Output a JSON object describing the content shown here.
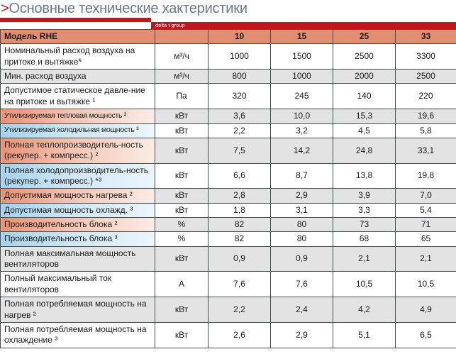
{
  "title": {
    "marker": ">",
    "text": "Основные технические хактеристики"
  },
  "brand": {
    "label": "delta t group"
  },
  "colors": {
    "accent_red": "#c3161c",
    "header_bg": "#e28e72",
    "zebra_gray": "#e3e3e4",
    "heat_gradient_start": "#e88f73",
    "heat_gradient_end": "#fbeee8",
    "cool_gradient_start": "#a2d1ed",
    "cool_gradient_end": "#ecf6fc",
    "border": "#4a4d52",
    "title_text": "#6a7a8a"
  },
  "table": {
    "model_header": "Модель RHE",
    "unit_header": "",
    "size_columns": [
      "10",
      "15",
      "25",
      "33"
    ],
    "rows": [
      {
        "label": "Номинальный расход воздуха на притоке и вытяжке*",
        "unit": "м³/ч",
        "values": [
          "1000",
          "1500",
          "2500",
          "3300"
        ],
        "accent": "none"
      },
      {
        "label": "Мин. расход воздуха",
        "unit": "м³/ч",
        "values": [
          "800",
          "1000",
          "2000",
          "2500"
        ],
        "accent": "none"
      },
      {
        "label": "Допустимое статическое давле-ние на притоке  и вытяжке ¹",
        "unit": "Па",
        "values": [
          "320",
          "245",
          "140",
          "220"
        ],
        "accent": "none"
      },
      {
        "label": "Утилизируемая тепловая мощность ²",
        "unit": "кВт",
        "values": [
          "3,6",
          "10,0",
          "15,3",
          "19,6"
        ],
        "accent": "heat"
      },
      {
        "label": "Утилизируемая холодильная мощность ³",
        "unit": "кВт",
        "values": [
          "2,2",
          "3,2",
          "4,5",
          "5,8"
        ],
        "accent": "cool"
      },
      {
        "label": "Полная теплопроизводитель-ность (рекупер. + компресс.)  ²",
        "unit": "кВт",
        "values": [
          "7,5",
          "14,2",
          "24,8",
          "33,1"
        ],
        "accent": "heat"
      },
      {
        "label": "Полная холодопроизводитель-ность (рекупер. + компресс.) *³",
        "unit": "кВт",
        "values": [
          "6,6",
          "8,7",
          "13,8",
          "19,8"
        ],
        "accent": "cool"
      },
      {
        "label": "Допустимая мощность нагрева ²",
        "unit": "кВт",
        "values": [
          "2,8",
          "2,9",
          "3,9",
          "7,0"
        ],
        "accent": "heat"
      },
      {
        "label": "Допустимая мощность охлажд. ³",
        "unit": "кВт",
        "values": [
          "1,8",
          "3,1",
          "3,3",
          "5,4"
        ],
        "accent": "cool"
      },
      {
        "label": "Производительность блока ²",
        "unit": "%",
        "values": [
          "82",
          "80",
          "73",
          "71"
        ],
        "accent": "heat"
      },
      {
        "label": "Производительность блока ³",
        "unit": "%",
        "values": [
          "82",
          "80",
          "68",
          "65"
        ],
        "accent": "cool"
      },
      {
        "label": "Полная максимальная мощность вентиляторов",
        "unit": "кВт",
        "values": [
          "0,9",
          "0,9",
          "2,1",
          "2,1"
        ],
        "accent": "none"
      },
      {
        "label": "Полный максимальный ток вентиляторов",
        "unit": "А",
        "values": [
          "7,6",
          "7,6",
          "10,5",
          "10,5"
        ],
        "accent": "none"
      },
      {
        "label": "Полная потребляемая мощность на нагрев ²",
        "unit": "кВт",
        "values": [
          "2,2",
          "2,4",
          "4,2",
          "4,9"
        ],
        "accent": "none"
      },
      {
        "label": "Полная потребляемая мощность на охлаждение  ³",
        "unit": "кВт",
        "values": [
          "2,6",
          "2,9",
          "5,1",
          "6,5"
        ],
        "accent": "none"
      }
    ]
  }
}
